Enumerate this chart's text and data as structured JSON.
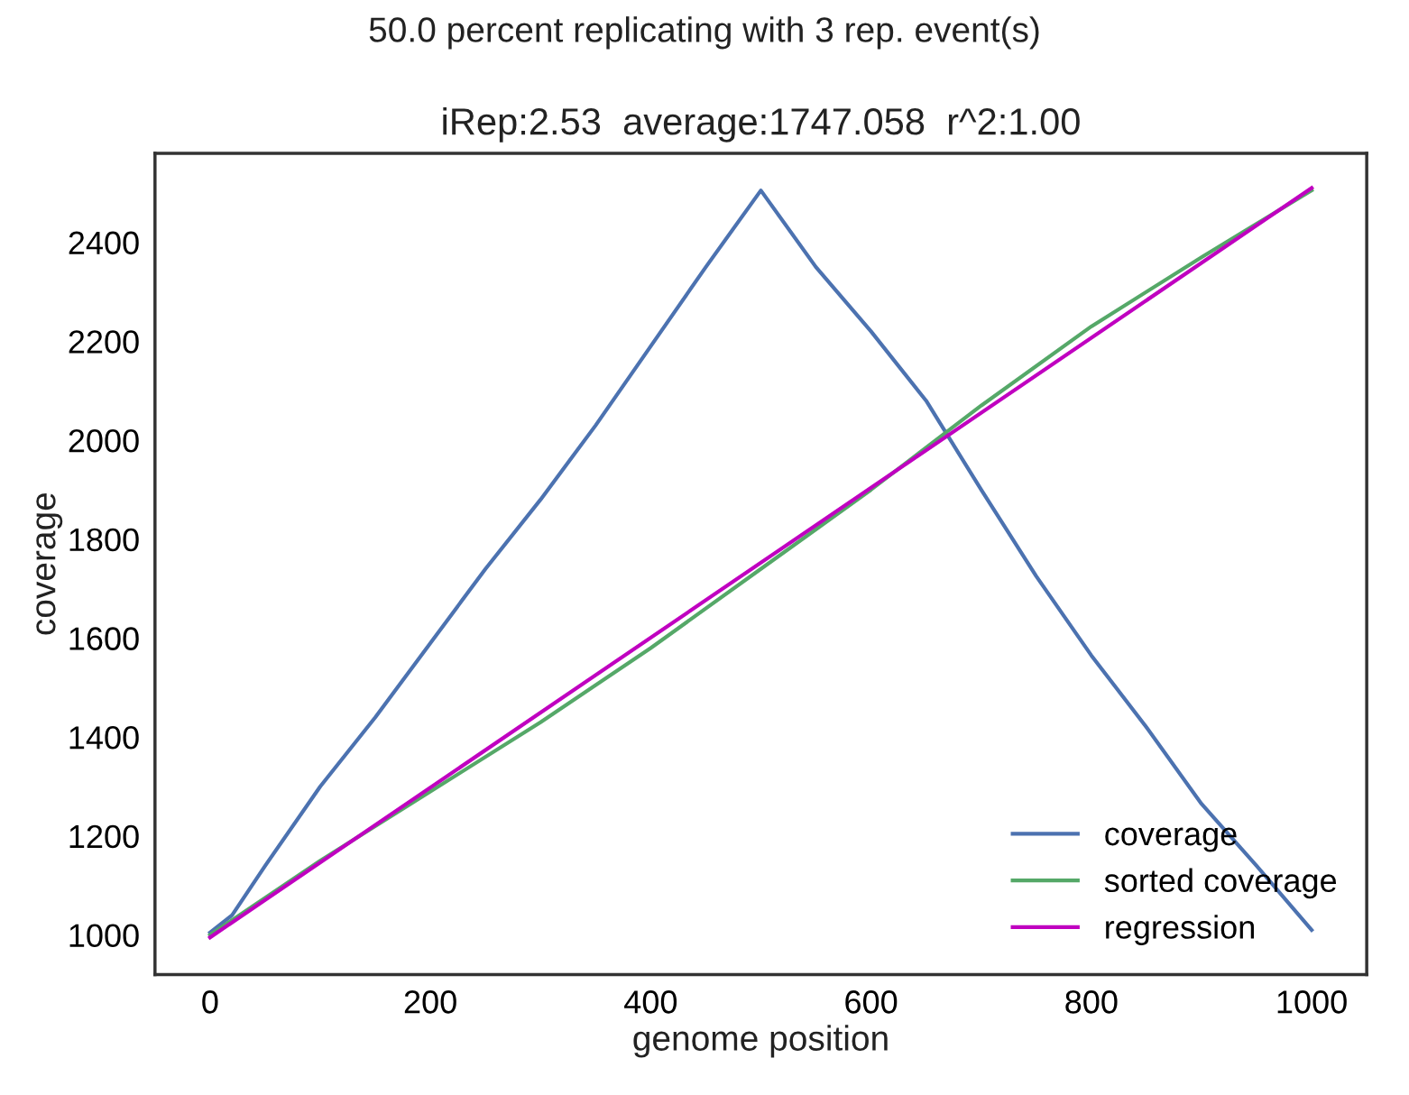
{
  "chart_data": {
    "type": "line",
    "title": "50.0 percent replicating with 3 rep. event(s)",
    "subtitle": "iRep:2.53  average:1747.058  r^2:1.00",
    "xlabel": "genome position",
    "ylabel": "coverage",
    "series": [
      {
        "name": "coverage",
        "color": "#4c72b0",
        "x": [
          0,
          20,
          50,
          100,
          150,
          200,
          250,
          300,
          350,
          400,
          450,
          500,
          550,
          600,
          650,
          700,
          750,
          800,
          850,
          900,
          950,
          1000
        ],
        "values": [
          1005,
          1040,
          1140,
          1300,
          1440,
          1590,
          1740,
          1880,
          2030,
          2190,
          2350,
          2505,
          2350,
          2220,
          2080,
          1900,
          1725,
          1565,
          1420,
          1265,
          1140,
          1010
        ]
      },
      {
        "name": "sorted coverage",
        "color": "#55a868",
        "x": [
          0,
          100,
          200,
          300,
          400,
          500,
          600,
          700,
          800,
          900,
          1000
        ],
        "values": [
          1000,
          1150,
          1290,
          1430,
          1580,
          1740,
          1900,
          2070,
          2230,
          2370,
          2505
        ]
      },
      {
        "name": "regression",
        "color": "#c000c0",
        "x": [
          0,
          1000
        ],
        "values": [
          995,
          2510
        ]
      }
    ],
    "xlim": [
      -50,
      1050
    ],
    "ylim": [
      920,
      2580
    ],
    "xticks": [
      0,
      200,
      400,
      600,
      800,
      1000
    ],
    "yticks": [
      1000,
      1200,
      1400,
      1600,
      1800,
      2000,
      2200,
      2400
    ],
    "grid": false,
    "legend": "bottom right",
    "line_style": "solid",
    "marker": "none"
  }
}
